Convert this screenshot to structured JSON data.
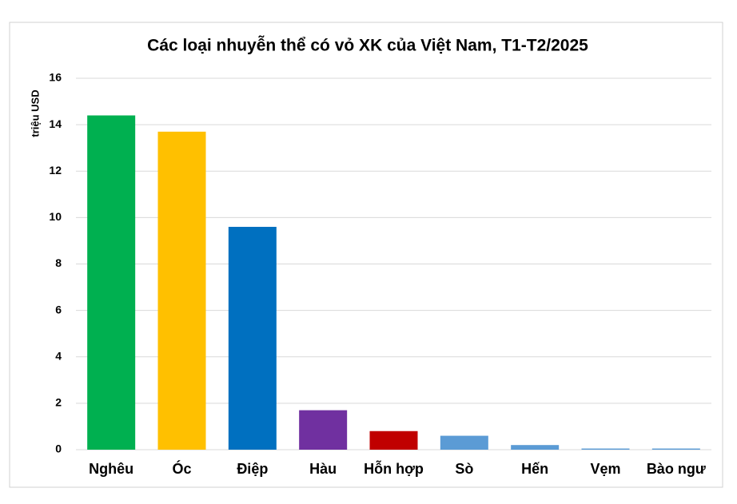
{
  "chart_data": {
    "type": "bar",
    "title": "Các loại nhuyễn thể có vỏ XK của Việt Nam, T1-T2/2025",
    "y_label": "triệu USD",
    "categories": [
      "Nghêu",
      "Óc",
      "Điệp",
      "Hàu",
      "Hỗn hợp",
      "Sò",
      "Hến",
      "Vẹm",
      "Bào ngư"
    ],
    "values": [
      14.4,
      13.7,
      9.6,
      1.7,
      0.8,
      0.6,
      0.2,
      0.05,
      0.05
    ],
    "colors": [
      "#00b050",
      "#ffc000",
      "#0070c0",
      "#7030a0",
      "#c00000",
      "#5b9bd5",
      "#5b9bd5",
      "#5b9bd5",
      "#5b9bd5"
    ],
    "ylim": [
      0,
      16
    ],
    "yticks": [
      0,
      2,
      4,
      6,
      8,
      10,
      12,
      14,
      16
    ],
    "grid": true
  }
}
